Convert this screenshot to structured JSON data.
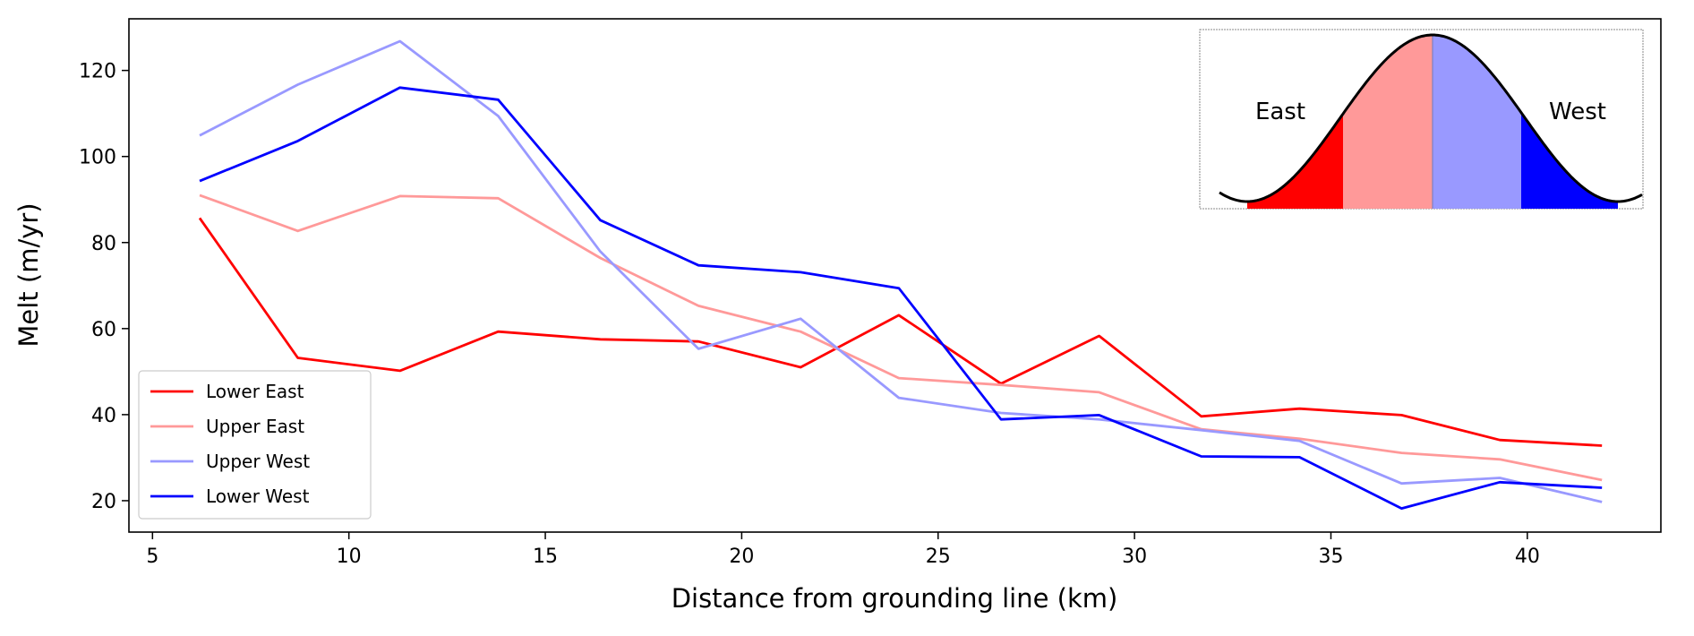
{
  "chart_data": {
    "type": "line",
    "title": "",
    "xlabel": "Distance from grounding line (km)",
    "ylabel": "Melt (m/yr)",
    "xlim": [
      4.4,
      43.4
    ],
    "ylim": [
      12.7,
      132
    ],
    "xticks": [
      5,
      10,
      15,
      20,
      25,
      30,
      35,
      40
    ],
    "yticks": [
      20,
      40,
      60,
      80,
      100,
      120
    ],
    "grid": false,
    "legend_position": "lower-left",
    "x": [
      6.2,
      8.7,
      11.3,
      13.8,
      16.4,
      18.9,
      21.5,
      24.0,
      26.6,
      29.1,
      31.7,
      34.2,
      36.8,
      39.3,
      41.9
    ],
    "series": [
      {
        "name": "Lower East",
        "color": "#ff0000",
        "values": [
          85.7,
          53.2,
          50.2,
          59.3,
          57.5,
          57.0,
          51.0,
          63.1,
          47.2,
          58.3,
          39.6,
          41.4,
          39.9,
          34.1,
          32.8
        ]
      },
      {
        "name": "Upper East",
        "color": "#ff9999",
        "values": [
          91.0,
          82.7,
          90.8,
          90.3,
          76.4,
          65.3,
          59.3,
          48.5,
          46.9,
          45.2,
          36.6,
          34.4,
          31.1,
          29.6,
          24.8
        ]
      },
      {
        "name": "Upper West",
        "color": "#9999ff",
        "values": [
          104.9,
          116.7,
          126.8,
          109.4,
          77.9,
          55.3,
          62.3,
          43.9,
          40.4,
          38.9,
          36.4,
          33.9,
          24.0,
          25.3,
          19.7
        ]
      },
      {
        "name": "Lower West",
        "color": "#0000ff",
        "values": [
          94.3,
          103.6,
          116.0,
          113.2,
          85.2,
          74.7,
          73.1,
          69.4,
          38.9,
          39.9,
          30.3,
          30.1,
          18.2,
          24.3,
          23.0
        ]
      }
    ],
    "inset": {
      "left_label": "East",
      "right_label": "West",
      "region_colors": [
        "#ff0000",
        "#ff9999",
        "#9999ff",
        "#0000ff"
      ]
    }
  }
}
